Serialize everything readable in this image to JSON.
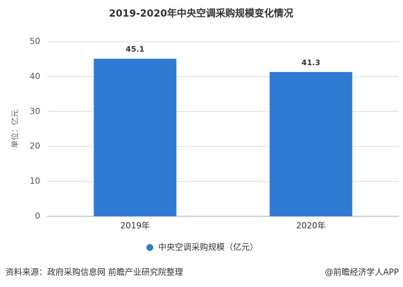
{
  "chart_data": {
    "type": "bar",
    "title": "2019-2020年中央空调采购规模变化情况",
    "y_label": "单位：亿元",
    "categories": [
      "2019年",
      "2020年"
    ],
    "series": [
      {
        "name": "中央空调采购规模（亿元）",
        "color": "#2f7bd3",
        "values": [
          45.1,
          41.3
        ]
      }
    ],
    "ylim": [
      0,
      50
    ],
    "yticks": [
      0,
      10,
      20,
      30,
      40,
      50
    ],
    "grid": true,
    "legend": "bottom"
  },
  "footer": {
    "source": "资料来源：政府采购信息网 前瞻产业研究院整理",
    "credit": "@前瞻经济学人APP"
  }
}
